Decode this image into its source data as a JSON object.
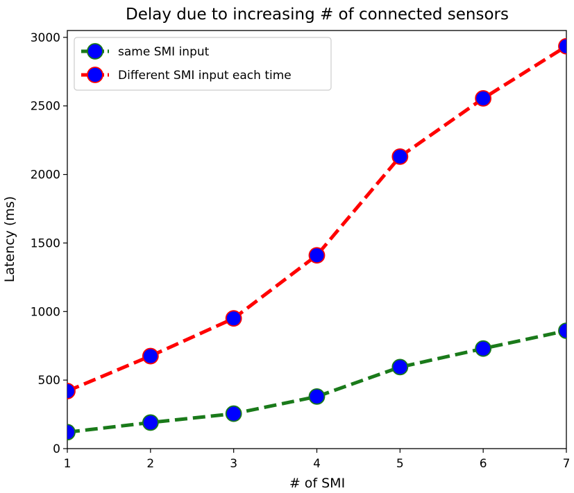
{
  "chart_data": {
    "type": "line",
    "title": "Delay due to increasing # of connected sensors",
    "xlabel": "# of SMI",
    "ylabel": "Latency (ms)",
    "xlim": [
      1,
      7
    ],
    "ylim": [
      0,
      3050
    ],
    "x_ticks": [
      1,
      2,
      3,
      4,
      5,
      6,
      7
    ],
    "y_ticks": [
      0,
      500,
      1000,
      1500,
      2000,
      2500,
      3000
    ],
    "x": [
      1,
      2,
      3,
      4,
      5,
      6,
      7
    ],
    "grid": false,
    "legend_position": "upper-left",
    "marker_fill": "#0000ff",
    "series": [
      {
        "name": "same SMI input",
        "values": [
          120,
          190,
          255,
          380,
          595,
          730,
          860
        ],
        "color": "#1a7a1a",
        "line_style": "dashed"
      },
      {
        "name": "Different SMI input each time",
        "values": [
          420,
          675,
          950,
          1410,
          2130,
          2555,
          2935
        ],
        "color": "#ff0000",
        "line_style": "dashed"
      }
    ]
  }
}
